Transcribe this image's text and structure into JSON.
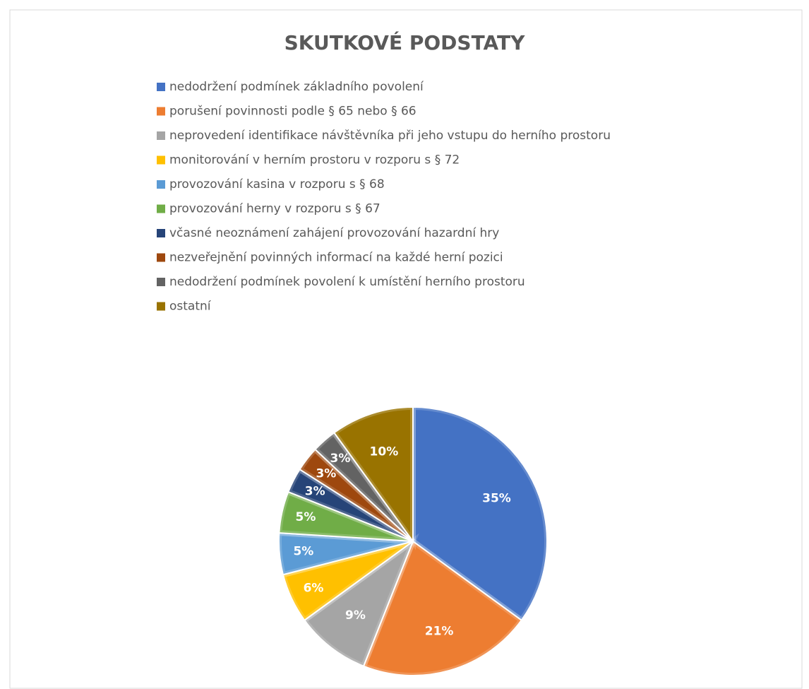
{
  "chart_data": {
    "type": "pie",
    "title": "SKUTKOVÉ PODSTATY",
    "categories": [
      "nedodržení podmínek základního povolení",
      "porušení povinnosti podle § 65 nebo § 66",
      "neprovedení identifikace návštěvníka při jeho vstupu do herního prostoru",
      "monitorování v herním prostoru v rozporu s § 72",
      "provozování kasina v rozporu s § 68",
      "provozování herny v rozporu s § 67",
      "včasné neoznámení zahájení provozování hazardní hry",
      "nezveřejnění povinných informací na každé herní pozici",
      "nedodržení podmínek povolení k umístění herního prostoru",
      "ostatní"
    ],
    "values": [
      35,
      21,
      9,
      6,
      5,
      5,
      3,
      3,
      3,
      10
    ],
    "value_labels": [
      "35%",
      "21%",
      "9%",
      "6%",
      "5%",
      "5%",
      "3%",
      "3%",
      "3%",
      "10%"
    ],
    "colors": [
      "#4472c4",
      "#ed7d31",
      "#a5a5a5",
      "#ffc000",
      "#5b9bd5",
      "#70ad47",
      "#264478",
      "#9e480e",
      "#636363",
      "#997300"
    ],
    "legend": "top"
  }
}
